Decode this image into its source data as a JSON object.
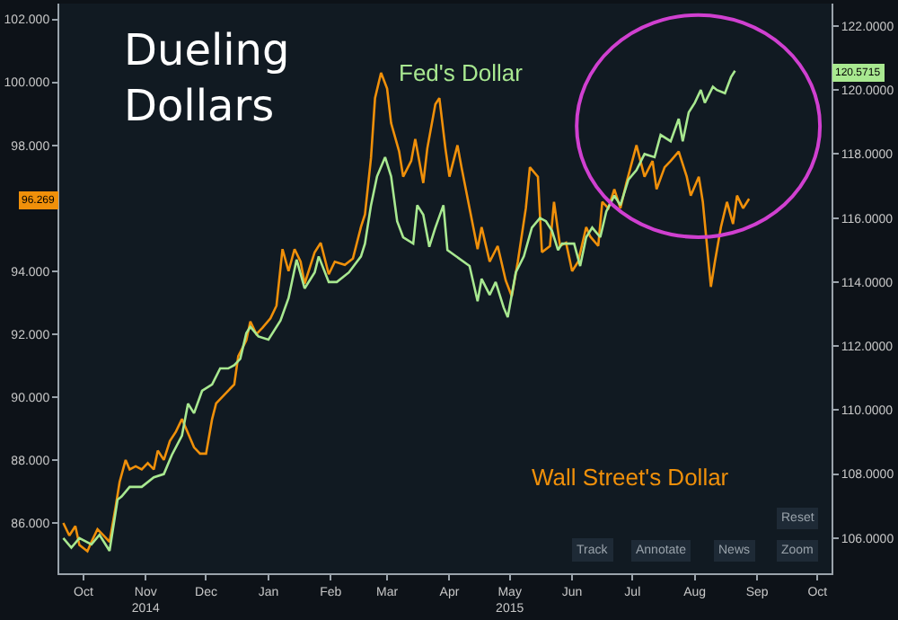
{
  "chart_data": {
    "type": "line",
    "title": "Dueling Dollars",
    "xlim": [
      "2014-10-03",
      "2015-10-22"
    ],
    "xticks": [
      {
        "value": "2014-10-15",
        "label": "Oct"
      },
      {
        "value": "2014-11-15",
        "label": "Nov\n2014"
      },
      {
        "value": "2014-12-15",
        "label": "Dec"
      },
      {
        "value": "2015-01-15",
        "label": "Jan"
      },
      {
        "value": "2015-02-15",
        "label": "Feb"
      },
      {
        "value": "2015-03-15",
        "label": "Mar"
      },
      {
        "value": "2015-04-15",
        "label": "Apr"
      },
      {
        "value": "2015-05-15",
        "label": "May\n2015"
      },
      {
        "value": "2015-06-15",
        "label": "Jun"
      },
      {
        "value": "2015-07-15",
        "label": "Jul"
      },
      {
        "value": "2015-08-15",
        "label": "Aug"
      },
      {
        "value": "2015-09-15",
        "label": "Sep"
      },
      {
        "value": "2015-10-15",
        "label": "Oct"
      }
    ],
    "ylim": [
      84.4,
      102.5
    ],
    "yticks": [
      {
        "value": 86,
        "label": "86.000"
      },
      {
        "value": 88,
        "label": "88.000"
      },
      {
        "value": 90,
        "label": "90.000"
      },
      {
        "value": 92,
        "label": "92.000"
      },
      {
        "value": 94,
        "label": "94.000"
      },
      {
        "value": 96,
        "label": null
      },
      {
        "value": 98,
        "label": "98.000"
      },
      {
        "value": 100,
        "label": "100.000"
      },
      {
        "value": 102,
        "label": "102.000"
      }
    ],
    "y2lim": [
      104.9,
      122.7
    ],
    "y2ticks": [
      {
        "value": 106,
        "label": "106.0000"
      },
      {
        "value": 108,
        "label": "108.0000"
      },
      {
        "value": 110,
        "label": "110.0000"
      },
      {
        "value": 112,
        "label": "112.0000"
      },
      {
        "value": 114,
        "label": "114.0000"
      },
      {
        "value": 116,
        "label": "116.0000"
      },
      {
        "value": 118,
        "label": "118.0000"
      },
      {
        "value": 120,
        "label": "120.0000"
      },
      {
        "value": 122,
        "label": "122.0000"
      }
    ],
    "grid": false,
    "legend": false,
    "marker": "none",
    "line_style": "solid",
    "annotations": [
      "Reset",
      "Track",
      "Annotate",
      "News",
      "Zoom",
      "96.269",
      "120.5715"
    ],
    "series": [
      {
        "name": "Wall Street's Dollar",
        "color": "#f0900a",
        "axis": "y",
        "x": [
          "2014-10-05",
          "2014-10-08",
          "2014-10-11",
          "2014-10-13",
          "2014-10-17",
          "2014-10-19",
          "2014-10-22",
          "2014-10-25",
          "2014-10-28",
          "2014-10-31",
          "2014-11-02",
          "2014-11-05",
          "2014-11-07",
          "2014-11-10",
          "2014-11-13",
          "2014-11-16",
          "2014-11-19",
          "2014-11-21",
          "2014-11-24",
          "2014-11-27",
          "2014-11-30",
          "2014-12-03",
          "2014-12-09",
          "2014-12-12",
          "2014-12-15",
          "2014-12-18",
          "2014-12-20",
          "2014-12-23",
          "2014-12-26",
          "2014-12-29",
          "2014-12-31",
          "2015-01-04",
          "2015-01-06",
          "2015-01-09",
          "2015-01-12",
          "2015-01-16",
          "2015-01-19",
          "2015-01-22",
          "2015-01-25",
          "2015-01-28",
          "2015-01-31",
          "2015-02-02",
          "2015-02-07",
          "2015-02-10",
          "2015-02-14",
          "2015-02-17",
          "2015-02-22",
          "2015-02-26",
          "2015-03-02",
          "2015-03-04",
          "2015-03-07",
          "2015-03-09",
          "2015-03-12",
          "2015-03-15",
          "2015-03-17",
          "2015-03-21",
          "2015-03-23",
          "2015-03-27",
          "2015-03-29",
          "2015-04-02",
          "2015-04-04",
          "2015-04-08",
          "2015-04-10",
          "2015-04-13",
          "2015-04-15",
          "2015-04-19",
          "2015-04-21",
          "2015-04-25",
          "2015-04-29",
          "2015-05-01",
          "2015-05-05",
          "2015-05-09",
          "2015-05-13",
          "2015-05-16",
          "2015-05-19",
          "2015-05-23",
          "2015-05-25",
          "2015-05-29",
          "2015-05-31",
          "2015-06-04",
          "2015-06-06",
          "2015-06-09",
          "2015-06-12",
          "2015-06-15",
          "2015-06-18",
          "2015-06-22",
          "2015-06-24",
          "2015-06-28",
          "2015-06-30",
          "2015-07-03",
          "2015-07-06",
          "2015-07-09",
          "2015-07-12",
          "2015-07-17",
          "2015-07-21",
          "2015-07-25",
          "2015-07-27",
          "2015-07-31",
          "2015-08-03",
          "2015-08-07",
          "2015-08-11",
          "2015-08-13",
          "2015-08-17",
          "2015-08-19",
          "2015-08-23",
          "2015-08-25",
          "2015-08-28",
          "2015-08-31",
          "2015-09-03",
          "2015-09-05",
          "2015-09-08",
          "2015-09-11"
        ],
        "values": [
          86.0,
          85.6,
          85.9,
          85.3,
          85.1,
          85.4,
          85.8,
          85.6,
          85.4,
          86.5,
          87.3,
          88.0,
          87.7,
          87.8,
          87.7,
          87.9,
          87.7,
          88.3,
          88.0,
          88.6,
          88.9,
          89.3,
          88.4,
          88.2,
          88.2,
          89.3,
          89.8,
          90.0,
          90.2,
          90.4,
          91.3,
          91.8,
          92.4,
          92.0,
          92.2,
          92.5,
          92.9,
          94.7,
          94.0,
          94.7,
          94.3,
          93.6,
          94.6,
          94.9,
          93.9,
          94.3,
          94.2,
          94.4,
          95.4,
          95.8,
          97.6,
          99.5,
          100.3,
          99.8,
          98.7,
          97.8,
          97.0,
          97.5,
          98.2,
          96.8,
          97.9,
          99.3,
          99.5,
          97.9,
          97.0,
          98.0,
          97.3,
          96.0,
          94.7,
          95.4,
          94.3,
          94.8,
          93.7,
          93.2,
          94.3,
          96.0,
          97.3,
          97.0,
          94.6,
          94.8,
          96.2,
          94.8,
          94.9,
          94.0,
          94.3,
          95.4,
          95.1,
          94.8,
          96.2,
          96.0,
          96.6,
          96.0,
          96.8,
          98.0,
          97.0,
          97.5,
          96.6,
          97.3,
          97.5,
          97.8,
          97.0,
          96.4,
          97.0,
          96.2,
          93.5,
          94.3,
          95.4,
          96.2,
          95.5,
          96.4,
          96.0,
          96.3
        ]
      },
      {
        "name": "Fed's Dollar",
        "color": "#a8e890",
        "axis": "y2",
        "x": [
          "2014-10-05",
          "2014-10-09",
          "2014-10-13",
          "2014-10-19",
          "2014-10-23",
          "2014-10-28",
          "2014-11-01",
          "2014-11-03",
          "2014-11-07",
          "2014-11-13",
          "2014-11-19",
          "2014-11-24",
          "2014-11-28",
          "2014-12-03",
          "2014-12-06",
          "2014-12-09",
          "2014-12-13",
          "2014-12-18",
          "2014-12-22",
          "2014-12-26",
          "2014-12-29",
          "2015-01-01",
          "2015-01-04",
          "2015-01-06",
          "2015-01-10",
          "2015-01-15",
          "2015-01-21",
          "2015-01-25",
          "2015-01-29",
          "2015-02-02",
          "2015-02-07",
          "2015-02-09",
          "2015-02-14",
          "2015-02-18",
          "2015-02-24",
          "2015-03-02",
          "2015-03-04",
          "2015-03-07",
          "2015-03-10",
          "2015-03-14",
          "2015-03-17",
          "2015-03-20",
          "2015-03-23",
          "2015-03-28",
          "2015-03-30",
          "2015-04-02",
          "2015-04-05",
          "2015-04-08",
          "2015-04-12",
          "2015-04-14",
          "2015-04-25",
          "2015-04-29",
          "2015-05-01",
          "2015-05-05",
          "2015-05-08",
          "2015-05-12",
          "2015-05-14",
          "2015-05-18",
          "2015-05-22",
          "2015-05-26",
          "2015-05-30",
          "2015-06-02",
          "2015-06-05",
          "2015-06-08",
          "2015-06-10",
          "2015-06-16",
          "2015-06-19",
          "2015-06-22",
          "2015-06-25",
          "2015-06-29",
          "2015-07-02",
          "2015-07-06",
          "2015-07-09",
          "2015-07-13",
          "2015-07-17",
          "2015-07-21",
          "2015-07-26",
          "2015-07-29",
          "2015-08-03",
          "2015-08-07",
          "2015-08-09",
          "2015-08-12",
          "2015-08-15",
          "2015-08-18",
          "2015-08-20",
          "2015-08-24",
          "2015-08-26",
          "2015-08-30",
          "2015-09-02",
          "2015-09-04"
        ],
        "values": [
          106.0,
          105.7,
          106.0,
          105.8,
          106.1,
          105.6,
          107.2,
          107.3,
          107.6,
          107.6,
          107.9,
          108.0,
          108.6,
          109.2,
          110.2,
          109.9,
          110.6,
          110.8,
          111.3,
          111.3,
          111.4,
          111.6,
          112.4,
          112.6,
          112.3,
          112.2,
          112.8,
          113.5,
          114.7,
          113.8,
          114.3,
          114.8,
          114.0,
          114.0,
          114.3,
          114.8,
          115.2,
          116.4,
          117.3,
          117.9,
          117.3,
          115.9,
          115.4,
          115.2,
          116.4,
          116.1,
          115.1,
          115.7,
          116.4,
          115.0,
          114.5,
          113.4,
          114.1,
          113.6,
          114.0,
          113.2,
          112.9,
          114.3,
          114.8,
          115.7,
          116.0,
          115.9,
          115.6,
          115.0,
          115.2,
          115.2,
          114.5,
          115.4,
          115.7,
          115.4,
          116.2,
          116.7,
          116.4,
          117.2,
          117.5,
          118.0,
          117.9,
          118.6,
          118.4,
          119.1,
          118.4,
          119.3,
          119.6,
          120.0,
          119.6,
          120.1,
          120.0,
          119.9,
          120.4,
          120.6
        ]
      }
    ]
  }
}
